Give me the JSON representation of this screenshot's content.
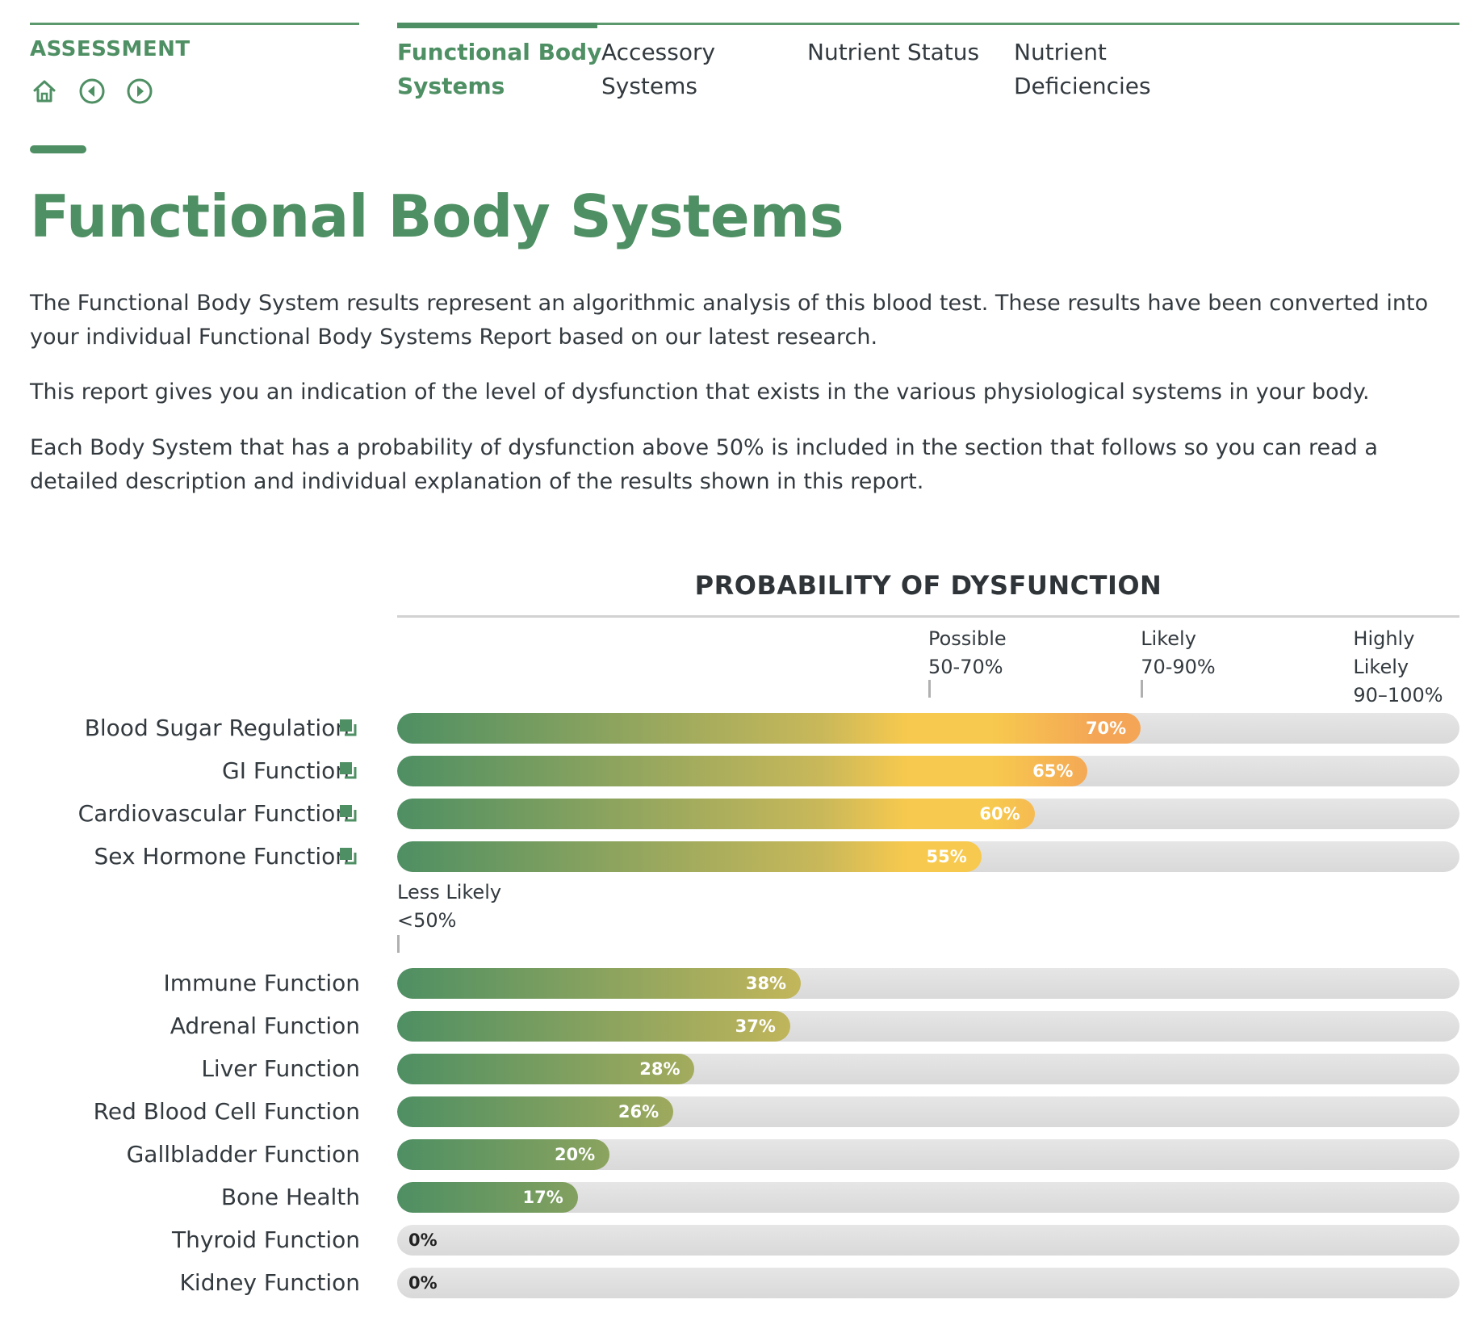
{
  "header": {
    "section_label": "ASSESSMENT",
    "nav_icons": [
      "home-icon",
      "previous-icon",
      "next-icon"
    ],
    "tabs": [
      {
        "label": "Functional Body\nSystems",
        "active": true
      },
      {
        "label": "Accessory\nSystems",
        "active": false
      },
      {
        "label": "Nutrient Status",
        "active": false
      },
      {
        "label": "Nutrient\nDeficiencies",
        "active": false
      }
    ]
  },
  "page": {
    "title": "Functional Body Systems",
    "paragraphs": [
      "The Functional Body System results represent an algorithmic analysis of this blood test. These results have been converted into your individual Functional Body Systems Report based on our latest research.",
      "This report gives you an indication of the level of dysfunction that exists in the various physiological systems in your body.",
      "Each Body System that has a probability of dysfunction above 50% is included in the section that follows so you can read a detailed description and individual explanation of the results shown in this report."
    ]
  },
  "colors": {
    "brand_green": "#4e8f63",
    "gradient_yellow": "#f7c94e",
    "gradient_orange": "#f4a556",
    "track_grey": "#dedede"
  },
  "chart_data": {
    "type": "bar",
    "orientation": "horizontal",
    "title": "PROBABILITY OF DYSFUNCTION",
    "xlim": [
      0,
      100
    ],
    "ranges": [
      {
        "label": "Less Likely\n<50%",
        "start": 0
      },
      {
        "label": "Possible\n50-70%",
        "start": 50
      },
      {
        "label": "Likely\n70-90%",
        "start": 70
      },
      {
        "label": "Highly\nLikely\n90–100%",
        "start": 90
      }
    ],
    "groups": [
      {
        "name": "above-50",
        "items": [
          {
            "label": "Blood Sugar Regulation",
            "value": 70,
            "value_label": "70%",
            "icon": "detail-link-icon"
          },
          {
            "label": "GI Function",
            "value": 65,
            "value_label": "65%",
            "icon": "detail-link-icon"
          },
          {
            "label": "Cardiovascular Function",
            "value": 60,
            "value_label": "60%",
            "icon": "detail-link-icon"
          },
          {
            "label": "Sex Hormone Function",
            "value": 55,
            "value_label": "55%",
            "icon": "detail-link-icon"
          }
        ]
      },
      {
        "name": "below-50",
        "items": [
          {
            "label": "Immune Function",
            "value": 38,
            "value_label": "38%"
          },
          {
            "label": "Adrenal Function",
            "value": 37,
            "value_label": "37%"
          },
          {
            "label": "Liver Function",
            "value": 28,
            "value_label": "28%"
          },
          {
            "label": "Red Blood Cell Function",
            "value": 26,
            "value_label": "26%"
          },
          {
            "label": "Gallbladder Function",
            "value": 20,
            "value_label": "20%"
          },
          {
            "label": "Bone Health",
            "value": 17,
            "value_label": "17%"
          },
          {
            "label": "Thyroid Function",
            "value": 0,
            "value_label": "0%"
          },
          {
            "label": "Kidney Function",
            "value": 0,
            "value_label": "0%"
          }
        ]
      }
    ]
  }
}
